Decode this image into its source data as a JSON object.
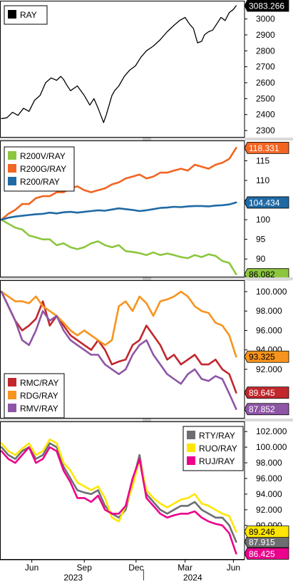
{
  "chart_data": [
    {
      "type": "line",
      "legend_position": "top-left",
      "series": [
        {
          "name": "RAY",
          "color": "#000000",
          "last_label": "3083.266",
          "x": [
            0,
            8,
            16,
            24,
            32,
            40,
            48,
            56,
            64,
            72,
            80,
            86,
            90,
            94,
            100,
            110,
            120,
            128,
            134,
            140,
            144,
            148,
            152,
            156,
            160,
            164,
            170,
            178,
            186,
            194,
            202,
            210,
            220,
            230,
            240,
            250,
            258,
            266,
            272,
            278,
            284,
            290,
            294,
            300,
            306,
            312,
            318,
            324,
            330,
            336,
            340
          ],
          "values": [
            2375,
            2380,
            2415,
            2395,
            2440,
            2420,
            2490,
            2520,
            2600,
            2630,
            2615,
            2640,
            2620,
            2590,
            2550,
            2580,
            2520,
            2460,
            2500,
            2440,
            2395,
            2350,
            2400,
            2460,
            2520,
            2550,
            2580,
            2640,
            2680,
            2705,
            2760,
            2800,
            2830,
            2870,
            2920,
            2960,
            2990,
            3010,
            2970,
            2940,
            2850,
            2860,
            2900,
            2920,
            2930,
            2970,
            3010,
            2990,
            3040,
            3060,
            3083
          ]
        }
      ],
      "yticks": [
        "3000",
        "2900",
        "2800",
        "2700",
        "2600",
        "2500",
        "2400",
        "2300"
      ],
      "ylim": [
        2260,
        3110
      ]
    },
    {
      "type": "line",
      "legend_position": "top-left",
      "series": [
        {
          "name": "R200V/RAY",
          "color": "#8cc63f",
          "last_label": "86.082",
          "x": [
            0,
            10,
            20,
            30,
            40,
            50,
            60,
            70,
            80,
            90,
            100,
            110,
            120,
            130,
            140,
            150,
            160,
            170,
            180,
            190,
            200,
            210,
            220,
            230,
            240,
            250,
            260,
            270,
            280,
            290,
            300,
            310,
            320,
            330,
            340
          ],
          "values": [
            100,
            99,
            98,
            97.5,
            96,
            95.5,
            95,
            95,
            93.5,
            94,
            93,
            92.5,
            93,
            94,
            94.5,
            93.5,
            93,
            93.5,
            92,
            91.8,
            91.5,
            91,
            91.7,
            91,
            91.4,
            91,
            90.5,
            90.2,
            91,
            90.5,
            91.2,
            90.8,
            89.5,
            89,
            86.1
          ]
        },
        {
          "name": "R200G/RAY",
          "color": "#f26522",
          "last_label": "118.331",
          "x": [
            0,
            10,
            20,
            30,
            40,
            50,
            60,
            70,
            80,
            90,
            100,
            110,
            120,
            130,
            140,
            150,
            160,
            170,
            180,
            190,
            200,
            210,
            220,
            230,
            240,
            250,
            260,
            270,
            280,
            290,
            300,
            310,
            320,
            330,
            340
          ],
          "values": [
            100,
            101.5,
            102.5,
            104,
            104,
            105.5,
            106,
            106,
            107,
            107,
            108,
            108.5,
            107.5,
            107,
            107.5,
            108,
            109,
            109.5,
            110.5,
            111,
            111.5,
            110.5,
            111,
            112,
            112,
            112.5,
            113,
            112.5,
            114,
            113.5,
            113,
            114,
            114.5,
            115.5,
            118.3
          ]
        },
        {
          "name": "R200/RAY",
          "color": "#1f6aa5",
          "last_label": "104.434",
          "x": [
            0,
            10,
            20,
            30,
            40,
            50,
            60,
            70,
            80,
            90,
            100,
            110,
            120,
            130,
            140,
            150,
            160,
            170,
            180,
            190,
            200,
            210,
            220,
            230,
            240,
            250,
            260,
            270,
            280,
            290,
            300,
            310,
            320,
            330,
            340
          ],
          "values": [
            100,
            100.5,
            100.8,
            101,
            101.2,
            101.4,
            101.5,
            101.8,
            101.6,
            101.9,
            102,
            101.8,
            102,
            102.2,
            102.4,
            102.3,
            102.6,
            102.9,
            102.7,
            102.5,
            102.2,
            102.4,
            102.7,
            103,
            103.1,
            103.3,
            103.2,
            103.4,
            103.5,
            103.5,
            103.4,
            103.6,
            103.7,
            103.9,
            104.4
          ]
        }
      ],
      "yticks": [
        "115",
        "110",
        "105",
        "100",
        "95",
        "90"
      ],
      "ylim": [
        85.5,
        120
      ]
    },
    {
      "type": "line",
      "legend_position": "bottom-left",
      "series": [
        {
          "name": "RMC/RAY",
          "color": "#c1272d",
          "last_label": "89.645",
          "x": [
            0,
            10,
            20,
            30,
            40,
            50,
            60,
            70,
            80,
            90,
            100,
            110,
            120,
            130,
            140,
            150,
            160,
            170,
            180,
            190,
            200,
            210,
            220,
            230,
            240,
            250,
            260,
            270,
            280,
            290,
            300,
            310,
            320,
            330,
            340
          ],
          "values": [
            100,
            98.5,
            97,
            96,
            96.5,
            97.2,
            99,
            96.5,
            97.5,
            96.5,
            95.5,
            95,
            94.5,
            94,
            95,
            94,
            92.5,
            92.8,
            93,
            94.5,
            95,
            96.5,
            95.5,
            94.5,
            93,
            93.5,
            92.5,
            93,
            93.5,
            92.5,
            92.5,
            93,
            92,
            91.5,
            89.6
          ]
        },
        {
          "name": "RDG/RAY",
          "color": "#f7941d",
          "last_label": "93.325",
          "x": [
            0,
            10,
            20,
            30,
            40,
            50,
            60,
            70,
            80,
            90,
            100,
            110,
            120,
            130,
            140,
            150,
            160,
            170,
            180,
            190,
            200,
            210,
            220,
            230,
            240,
            250,
            260,
            270,
            280,
            290,
            300,
            310,
            320,
            330,
            340
          ],
          "values": [
            100,
            99.5,
            99,
            99,
            98.8,
            99.5,
            98.5,
            98,
            97.5,
            96.8,
            96,
            95.5,
            96,
            95.5,
            95,
            94.5,
            95,
            98.5,
            99,
            98,
            99.5,
            98.8,
            97.5,
            99,
            99.2,
            99.5,
            100,
            99.5,
            98.5,
            98,
            97.8,
            96.8,
            96.5,
            95.5,
            93.3
          ]
        },
        {
          "name": "RMV/RAY",
          "color": "#8e55a5",
          "last_label": "87.852",
          "x": [
            0,
            10,
            20,
            30,
            40,
            50,
            60,
            70,
            80,
            90,
            100,
            110,
            120,
            130,
            140,
            150,
            160,
            170,
            180,
            190,
            200,
            210,
            220,
            230,
            240,
            250,
            260,
            270,
            280,
            290,
            300,
            310,
            320,
            330,
            340
          ],
          "values": [
            100,
            98.5,
            97,
            95,
            94.5,
            96,
            98,
            97,
            97.5,
            96,
            95,
            94.5,
            94,
            93.5,
            93.5,
            92.5,
            92,
            91.5,
            92,
            93.5,
            94.5,
            95,
            93.5,
            92.5,
            91.5,
            91,
            90.5,
            91.5,
            92,
            91,
            90.8,
            91.3,
            91,
            89.5,
            87.9
          ]
        }
      ],
      "yticks": [
        "100.000",
        "98.000",
        "96.000",
        "94.000",
        "92.000"
      ],
      "ylim": [
        87,
        101.1
      ]
    },
    {
      "type": "line",
      "legend_position": "top-right",
      "series": [
        {
          "name": "RTY/RAY",
          "color": "#6d6e71",
          "last_label": "87.915",
          "x": [
            0,
            10,
            20,
            30,
            40,
            50,
            60,
            70,
            80,
            90,
            100,
            110,
            120,
            130,
            140,
            150,
            160,
            170,
            180,
            190,
            200,
            210,
            220,
            230,
            240,
            250,
            260,
            270,
            280,
            290,
            300,
            310,
            320,
            330,
            340
          ],
          "values": [
            100,
            99,
            98.5,
            99.5,
            100,
            98.5,
            99,
            100.5,
            100,
            97.5,
            96,
            94.5,
            94.2,
            94,
            94.5,
            92.5,
            91.5,
            91,
            92,
            95.5,
            99,
            94,
            93,
            92,
            91.5,
            92,
            92.5,
            92.5,
            93,
            92,
            91.5,
            91,
            91,
            90,
            87.9
          ]
        },
        {
          "name": "RUO/RAY",
          "color": "#ffe600",
          "last_label": "89.246",
          "x": [
            0,
            10,
            20,
            30,
            40,
            50,
            60,
            70,
            80,
            90,
            100,
            110,
            120,
            130,
            140,
            150,
            160,
            170,
            180,
            190,
            200,
            210,
            220,
            230,
            240,
            250,
            260,
            270,
            280,
            290,
            300,
            310,
            320,
            330,
            340
          ],
          "values": [
            100.5,
            99.5,
            99,
            99.8,
            100.5,
            99,
            99.5,
            101,
            100.5,
            98,
            97,
            95.5,
            95,
            94.5,
            95,
            93.5,
            91,
            90.5,
            92.5,
            95,
            98.5,
            94.5,
            93.5,
            92.8,
            92.3,
            92.8,
            93.3,
            93.5,
            94,
            92.8,
            92.5,
            92,
            91.5,
            91.2,
            89.2
          ]
        },
        {
          "name": "RUJ/RAY",
          "color": "#ec008c",
          "last_label": "86.425",
          "x": [
            0,
            10,
            20,
            30,
            40,
            50,
            60,
            70,
            80,
            90,
            100,
            110,
            120,
            130,
            140,
            150,
            160,
            170,
            180,
            190,
            200,
            210,
            220,
            230,
            240,
            250,
            260,
            270,
            280,
            290,
            300,
            310,
            320,
            330,
            340
          ],
          "values": [
            99.5,
            98.5,
            98,
            99,
            100,
            98,
            98.5,
            100,
            99.5,
            97,
            95.5,
            93.5,
            93.5,
            93,
            93.8,
            92,
            91.5,
            91.5,
            92.5,
            96,
            98.5,
            93.5,
            92.5,
            91.5,
            91,
            91.3,
            91.5,
            91.5,
            91.8,
            91,
            90.5,
            90.2,
            90,
            89,
            86.4
          ]
        }
      ],
      "yticks": [
        "102.000",
        "100.000",
        "98.000",
        "96.000",
        "94.000",
        "92.000",
        "90.000",
        "88.000"
      ],
      "ylim": [
        85.7,
        103.2
      ]
    }
  ],
  "x_axis": {
    "x_range": [
      0,
      350
    ],
    "months": [
      {
        "label": "Jun",
        "x": 44
      },
      {
        "label": "Sep",
        "x": 120
      },
      {
        "label": "Dec",
        "x": 195
      },
      {
        "label": "Mar",
        "x": 266
      },
      {
        "label": "Jun",
        "x": 336
      }
    ],
    "years": [
      {
        "label": "2023",
        "x": 104
      },
      {
        "label": "2024",
        "x": 277
      }
    ],
    "year_divider_x": 206
  },
  "colors": {
    "background": "#ffffff",
    "grid": "#9a9a9a",
    "frame": "#000000",
    "divider": "#9a9a9a"
  }
}
